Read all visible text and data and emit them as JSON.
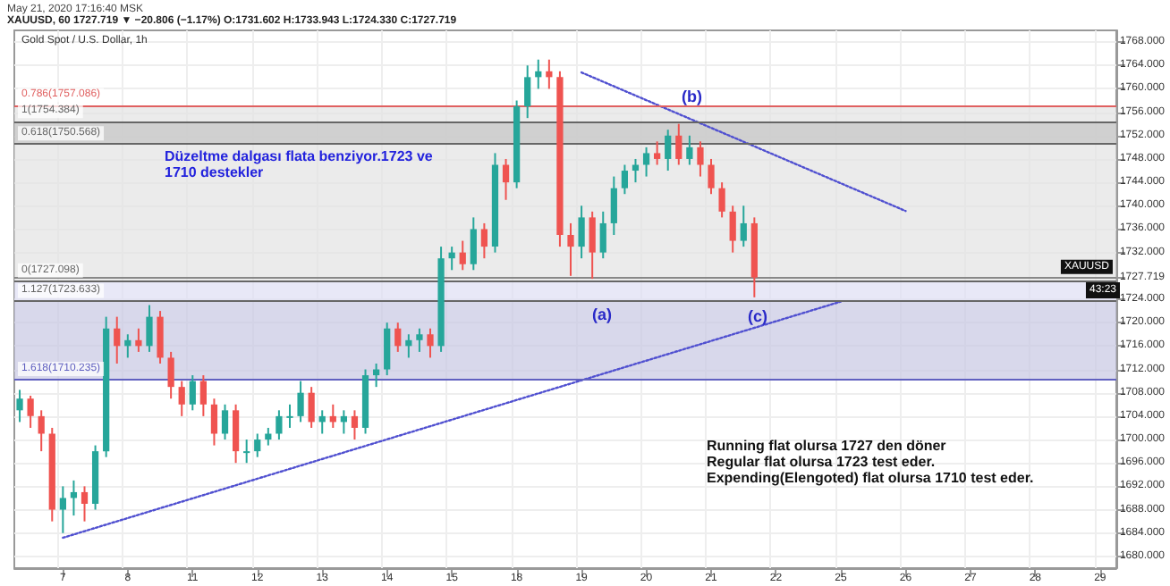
{
  "chart_data": {
    "type": "candlestick",
    "title": "Gold Spot / U.S. Dollar, 1h",
    "subtitle": "XAUUSD, 60 1727.719 ▼ −20.806 (−1.17%) O:1731.602 H:1733.943 L:1724.330 C:1727.719",
    "categories": [
      null,
      null,
      null,
      null,
      "7",
      null,
      null,
      null,
      null,
      null,
      "8",
      null,
      null,
      null,
      null,
      null,
      "11",
      null,
      null,
      null,
      null,
      null,
      "12",
      null,
      null,
      null,
      null,
      null,
      "13",
      null,
      null,
      null,
      null,
      null,
      "14",
      null,
      null,
      null,
      null,
      null,
      "15",
      null,
      null,
      null,
      null,
      null,
      "18",
      null,
      null,
      null,
      null,
      null,
      "19",
      null,
      null,
      null,
      null,
      null,
      "20",
      null,
      null,
      null,
      null,
      null,
      "21",
      null,
      null,
      null,
      null,
      null,
      "22",
      null,
      null,
      null,
      null,
      null,
      "25",
      null,
      null,
      null,
      null,
      null,
      "26",
      null,
      null,
      null,
      null,
      null,
      "27",
      null,
      null,
      null,
      null,
      null,
      "28",
      null,
      null,
      null,
      null,
      null,
      "29",
      null
    ],
    "ohlc": [
      [
        1705,
        1708.5,
        1703,
        1707
      ],
      [
        1707,
        1707.5,
        1702,
        1704
      ],
      [
        1704,
        1705,
        1698,
        1701
      ],
      [
        1701,
        1702,
        1686,
        1688
      ],
      [
        1688,
        1692,
        1684,
        1690
      ],
      [
        1690,
        1693,
        1687,
        1691
      ],
      [
        1691,
        1692,
        1686,
        1689
      ],
      [
        1689,
        1699,
        1688,
        1698
      ],
      [
        1698,
        1721,
        1697,
        1719
      ],
      [
        1719,
        1721,
        1713,
        1716
      ],
      [
        1716,
        1718,
        1714,
        1717
      ],
      [
        1717,
        1719,
        1715,
        1716
      ],
      [
        1716,
        1723,
        1715,
        1721
      ],
      [
        1721,
        1722,
        1713,
        1714
      ],
      [
        1714,
        1715,
        1707,
        1709
      ],
      [
        1709,
        1710,
        1704,
        1706
      ],
      [
        1706,
        1711,
        1705,
        1710
      ],
      [
        1710,
        1711,
        1704,
        1706
      ],
      [
        1706,
        1707,
        1699,
        1701
      ],
      [
        1701,
        1706,
        1700,
        1705
      ],
      [
        1705,
        1706,
        1696,
        1698
      ],
      [
        1698,
        1700,
        1696,
        1698
      ],
      [
        1698,
        1701,
        1697,
        1700
      ],
      [
        1700,
        1702,
        1699,
        1701
      ],
      [
        1701,
        1705,
        1700,
        1704
      ],
      [
        1704,
        1706,
        1702,
        1704
      ],
      [
        1704,
        1710,
        1703,
        1708
      ],
      [
        1708,
        1709,
        1702,
        1703
      ],
      [
        1703,
        1705,
        1701,
        1704
      ],
      [
        1704,
        1706,
        1702,
        1703
      ],
      [
        1703,
        1705,
        1701,
        1704
      ],
      [
        1704,
        1705,
        1700,
        1702
      ],
      [
        1702,
        1712,
        1701,
        1711
      ],
      [
        1711,
        1713,
        1709,
        1712
      ],
      [
        1712,
        1720,
        1711,
        1719
      ],
      [
        1719,
        1720,
        1715,
        1716
      ],
      [
        1716,
        1718,
        1714,
        1717
      ],
      [
        1717,
        1719,
        1715,
        1718
      ],
      [
        1718,
        1719,
        1714,
        1716
      ],
      [
        1716,
        1733,
        1715,
        1731
      ],
      [
        1731,
        1733,
        1729,
        1732
      ],
      [
        1732,
        1734,
        1729,
        1730
      ],
      [
        1730,
        1738,
        1729,
        1736
      ],
      [
        1736,
        1737,
        1731,
        1733
      ],
      [
        1733,
        1749,
        1732,
        1747
      ],
      [
        1747,
        1748,
        1741,
        1744
      ],
      [
        1744,
        1758,
        1743,
        1757
      ],
      [
        1757,
        1764,
        1755,
        1762
      ],
      [
        1762,
        1765,
        1760,
        1763
      ],
      [
        1763,
        1765,
        1760,
        1762
      ],
      [
        1762,
        1763,
        1733,
        1735
      ],
      [
        1735,
        1737,
        1728,
        1733
      ],
      [
        1733,
        1740,
        1731,
        1738
      ],
      [
        1738,
        1739,
        1727.5,
        1732
      ],
      [
        1732,
        1739,
        1731,
        1737
      ],
      [
        1737,
        1745,
        1735,
        1743
      ],
      [
        1743,
        1747,
        1742,
        1746
      ],
      [
        1746,
        1748,
        1744,
        1747
      ],
      [
        1747,
        1750,
        1745,
        1749
      ],
      [
        1749,
        1751,
        1747,
        1748
      ],
      [
        1748,
        1753,
        1746,
        1752
      ],
      [
        1752,
        1754,
        1747,
        1748
      ],
      [
        1748,
        1752,
        1747,
        1750
      ],
      [
        1750,
        1751,
        1745,
        1747
      ],
      [
        1747,
        1748,
        1742,
        1743
      ],
      [
        1743,
        1744,
        1738,
        1739
      ],
      [
        1739,
        1740,
        1732,
        1734
      ],
      [
        1734,
        1740,
        1733,
        1737
      ],
      [
        1737,
        1738,
        1724.33,
        1727.719
      ],
      null,
      null,
      null,
      null,
      null,
      null,
      null,
      null,
      null,
      null,
      null,
      null,
      null,
      null,
      null,
      null,
      null,
      null,
      null,
      null,
      null,
      null,
      null,
      null,
      null,
      null,
      null,
      null,
      null,
      null,
      null,
      null,
      null
    ],
    "series": [
      {
        "type": "line",
        "color": "#5050d0",
        "line_style": "dotted",
        "x": [
          "7",
          "25"
        ],
        "values": [
          1683.2,
          1723.6
        ]
      },
      {
        "type": "line",
        "color": "#5050d0",
        "line_style": "dotted",
        "x": [
          "19",
          "26"
        ],
        "values": [
          1762.8,
          1739.1
        ]
      }
    ],
    "ylim": [
      1678,
      1770
    ],
    "yticks": [
      {
        "value": 1680,
        "label": "1680.000"
      },
      {
        "value": 1684,
        "label": "1684.000"
      },
      {
        "value": 1688,
        "label": "1688.000"
      },
      {
        "value": 1692,
        "label": "1692.000"
      },
      {
        "value": 1696,
        "label": "1696.000"
      },
      {
        "value": 1700,
        "label": "1700.000"
      },
      {
        "value": 1704,
        "label": "1704.000"
      },
      {
        "value": 1708,
        "label": "1708.000"
      },
      {
        "value": 1712,
        "label": "1712.000"
      },
      {
        "value": 1716,
        "label": "1716.000"
      },
      {
        "value": 1720,
        "label": "1720.000"
      },
      {
        "value": 1724,
        "label": "1724.000"
      },
      {
        "value": 1727.719,
        "label": "1727.719"
      },
      {
        "value": 1732,
        "label": "1732.000"
      },
      {
        "value": 1736,
        "label": "1736.000"
      },
      {
        "value": 1740,
        "label": "1740.000"
      },
      {
        "value": 1744,
        "label": "1744.000"
      },
      {
        "value": 1748,
        "label": "1748.000"
      },
      {
        "value": 1752,
        "label": "1752.000"
      },
      {
        "value": 1756,
        "label": "1756.000"
      },
      {
        "value": 1760,
        "label": "1760.000"
      },
      {
        "value": 1764,
        "label": "1764.000"
      },
      {
        "value": 1768,
        "label": "1768.000"
      }
    ],
    "grid": true,
    "bands": [
      {
        "axis": "y",
        "from": 1727.098,
        "to": 1757.086,
        "color": "#e2e2e2"
      },
      {
        "axis": "y",
        "from": 1750.568,
        "to": 1754.384,
        "color": "#c4c4c4"
      },
      {
        "axis": "y",
        "from": 1723.633,
        "to": 1727.098,
        "color": "#dedef4"
      },
      {
        "axis": "y",
        "from": 1710.235,
        "to": 1723.633,
        "color": "#c8c8e2"
      }
    ],
    "ref_lines": [
      {
        "axis": "y",
        "value": 1727.719,
        "label": "XAUUSD",
        "color": "#888888"
      },
      {
        "axis": "y",
        "value": 1757.086,
        "label": "0.786(1757.086)",
        "color": "#e06060"
      },
      {
        "axis": "y",
        "value": 1754.384,
        "label": "1(1754.384)",
        "color": "#666666"
      },
      {
        "axis": "y",
        "value": 1750.568,
        "label": "0.618(1750.568)",
        "color": "#666666"
      },
      {
        "axis": "y",
        "value": 1727.098,
        "label": "0(1727.098)",
        "color": "#666666"
      },
      {
        "axis": "y",
        "value": 1723.633,
        "label": "1.127(1723.633)",
        "color": "#666666"
      },
      {
        "axis": "y",
        "value": 1710.235,
        "label": "1.618(1710.235)",
        "color": "#6060c0"
      }
    ],
    "annotations": [
      "May 21, 2020 17:16:40 MSK",
      "Düzeltme dalgası flata benziyor.1723 ve\n1710 destekler",
      "Running flat olursa 1727 den döner\nRegular flat olursa 1723 test eder.\nExpending(Elengoted) flat olursa 1710 test eder.",
      "43:23",
      "(a)",
      "(b)",
      "(c)"
    ]
  }
}
